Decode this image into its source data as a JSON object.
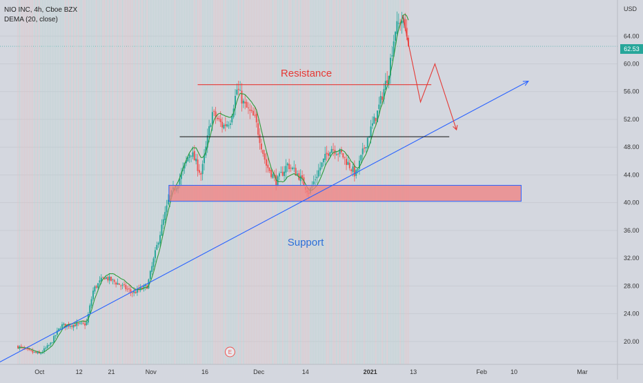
{
  "legend": {
    "symbol": "NIO INC, 4h, Cboe BZX",
    "indicator": "DEMA (20, close)"
  },
  "currency": "USD",
  "last_price": "62.53",
  "colors": {
    "up": "#26a69a",
    "down": "#ef5350",
    "dema": "#2e9a3a",
    "resistance": "#e53935",
    "support": "#2962ff",
    "mid_line": "#111111",
    "zone_fill": "#f08080",
    "zone_border": "#2962ff",
    "projection": "#e53935"
  },
  "chart_data": {
    "type": "candlestick",
    "symbol": "NIO INC",
    "timeframe": "4h",
    "exchange": "Cboe BZX",
    "y_axis": {
      "ticks": [
        "20.00",
        "24.00",
        "28.00",
        "32.00",
        "36.00",
        "40.00",
        "44.00",
        "48.00",
        "52.00",
        "56.00",
        "60.00",
        "64.00"
      ],
      "range": [
        17.5,
        68.5
      ],
      "unit": "USD"
    },
    "x_axis": {
      "ticks": [
        "Oct",
        "12",
        "21",
        "Nov",
        "16",
        "Dec",
        "14",
        "2021",
        "13",
        "Feb",
        "10",
        "Mar"
      ]
    },
    "indicator": "DEMA (20, close)",
    "earnings_marker": "E",
    "annotations": {
      "resistance": {
        "label": "Resistance",
        "price": 57.0,
        "from": "Nov 14",
        "to": "Jan 18"
      },
      "middle_line": {
        "price": 49.5,
        "from": "Nov 9",
        "to": "Jan 23"
      },
      "support_zone": {
        "from_price": 40.2,
        "to_price": 42.5,
        "from": "Nov 6",
        "to": "Feb 12"
      },
      "support_trendline": {
        "label": "Support",
        "from": [
          "Sep 18",
          16.5
        ],
        "to": [
          "Feb 14",
          57.5
        ]
      },
      "projection": [
        [
          "Jan 10",
          67.0
        ],
        [
          "Jan 15",
          54.5
        ],
        [
          "Jan 19",
          60.0
        ],
        [
          "Jan 25",
          50.5
        ]
      ]
    },
    "price_path": [
      [
        "Sep 25",
        19.3
      ],
      [
        "Sep 28",
        18.6
      ],
      [
        "Oct 1",
        18.2
      ],
      [
        "Oct 4",
        19.6
      ],
      [
        "Oct 7",
        22.3
      ],
      [
        "Oct 10",
        22.4
      ],
      [
        "Oct 14",
        22.5
      ],
      [
        "Oct 16",
        27.5
      ],
      [
        "Oct 19",
        29.3
      ],
      [
        "Oct 23",
        28.3
      ],
      [
        "Oct 27",
        27.0
      ],
      [
        "Oct 31",
        28.0
      ],
      [
        "Nov 3",
        34.5
      ],
      [
        "Nov 6",
        40.5
      ],
      [
        "Nov 9",
        43.5
      ],
      [
        "Nov 12",
        47.5
      ],
      [
        "Nov 15",
        44.0
      ],
      [
        "Nov 18",
        53.0
      ],
      [
        "Nov 21",
        51.0
      ],
      [
        "Nov 23",
        51.8
      ],
      [
        "Nov 25",
        56.5
      ],
      [
        "Nov 27",
        54.0
      ],
      [
        "Nov 30",
        52.0
      ],
      [
        "Dec 3",
        45.5
      ],
      [
        "Dec 6",
        43.0
      ],
      [
        "Dec 9",
        45.5
      ],
      [
        "Dec 12",
        44.0
      ],
      [
        "Dec 15",
        41.5
      ],
      [
        "Dec 18",
        45.0
      ],
      [
        "Dec 21",
        48.0
      ],
      [
        "Dec 24",
        47.0
      ],
      [
        "Dec 28",
        44.0
      ],
      [
        "Dec 31",
        49.0
      ],
      [
        "Jan 3",
        53.0
      ],
      [
        "Jan 6",
        58.5
      ],
      [
        "Jan 8",
        65.0
      ],
      [
        "Jan 10",
        66.5
      ],
      [
        "Jan 12",
        62.5
      ]
    ]
  }
}
